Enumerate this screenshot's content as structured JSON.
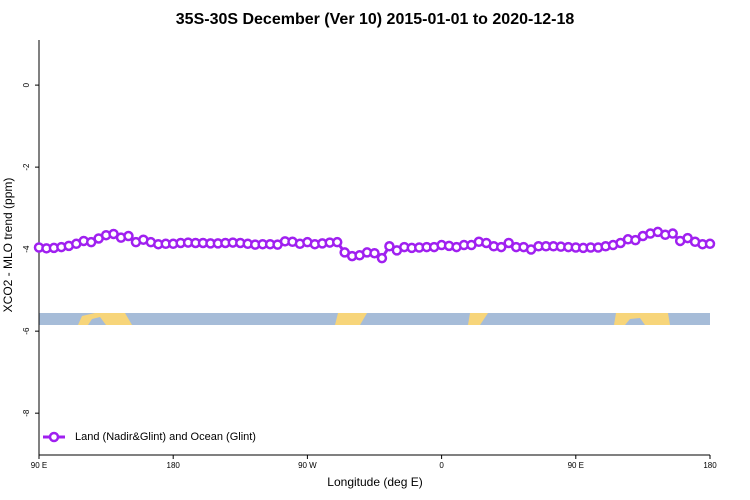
{
  "chart_data": {
    "type": "line",
    "title": "35S-30S December (Ver 10)   2015-01-01 to 2020-12-18",
    "x_label": "Longitude (deg E)",
    "y_label": "XCO2 - MLO trend (ppm)",
    "x": [
      90,
      95,
      100,
      105,
      110,
      115,
      120,
      125,
      130,
      135,
      140,
      145,
      150,
      155,
      160,
      165,
      170,
      175,
      180,
      185,
      190,
      195,
      200,
      205,
      210,
      215,
      220,
      225,
      230,
      235,
      240,
      245,
      250,
      255,
      260,
      265,
      270,
      275,
      280,
      285,
      290,
      295,
      300,
      305,
      310,
      315,
      320,
      325,
      330,
      335,
      340,
      345,
      350,
      355,
      360,
      365,
      370,
      375,
      380,
      385,
      390,
      395,
      400,
      405,
      410,
      415,
      420,
      425,
      430,
      435,
      440,
      445,
      450,
      455,
      460,
      465,
      470,
      475,
      480,
      485,
      490,
      495,
      500,
      505,
      510,
      515,
      520,
      525,
      530,
      535,
      540
    ],
    "series": [
      {
        "name": "Land (Nadir&Glint) and Ocean (Glint)",
        "color": "#a020f0",
        "values": [
          -3.96,
          -3.98,
          -3.97,
          -3.95,
          -3.92,
          -3.87,
          -3.8,
          -3.83,
          -3.74,
          -3.66,
          -3.63,
          -3.72,
          -3.68,
          -3.83,
          -3.77,
          -3.83,
          -3.88,
          -3.87,
          -3.87,
          -3.85,
          -3.84,
          -3.85,
          -3.85,
          -3.86,
          -3.86,
          -3.85,
          -3.84,
          -3.85,
          -3.87,
          -3.89,
          -3.88,
          -3.88,
          -3.89,
          -3.81,
          -3.82,
          -3.87,
          -3.83,
          -3.88,
          -3.86,
          -3.84,
          -3.83,
          -4.08,
          -4.17,
          -4.15,
          -4.08,
          -4.1,
          -4.22,
          -3.93,
          -4.03,
          -3.95,
          -3.97,
          -3.96,
          -3.95,
          -3.95,
          -3.9,
          -3.92,
          -3.95,
          -3.9,
          -3.9,
          -3.82,
          -3.85,
          -3.93,
          -3.95,
          -3.85,
          -3.95,
          -3.95,
          -4.01,
          -3.93,
          -3.93,
          -3.93,
          -3.94,
          -3.95,
          -3.96,
          -3.97,
          -3.96,
          -3.96,
          -3.93,
          -3.9,
          -3.85,
          -3.76,
          -3.78,
          -3.68,
          -3.62,
          -3.58,
          -3.65,
          -3.62,
          -3.8,
          -3.73,
          -3.82,
          -3.88,
          -3.87
        ]
      }
    ],
    "xlim": [
      90,
      540
    ],
    "xticks": [
      {
        "value": 90,
        "label": "90 E"
      },
      {
        "value": 180,
        "label": "180"
      },
      {
        "value": 270,
        "label": "90 W"
      },
      {
        "value": 360,
        "label": "0"
      },
      {
        "value": 450,
        "label": "90 E"
      },
      {
        "value": 540,
        "label": "180"
      }
    ],
    "ylim": [
      -9.02,
      1.1
    ],
    "yticks": [
      0,
      -2,
      -4,
      -6,
      -8
    ],
    "legend": "bottom-left"
  }
}
